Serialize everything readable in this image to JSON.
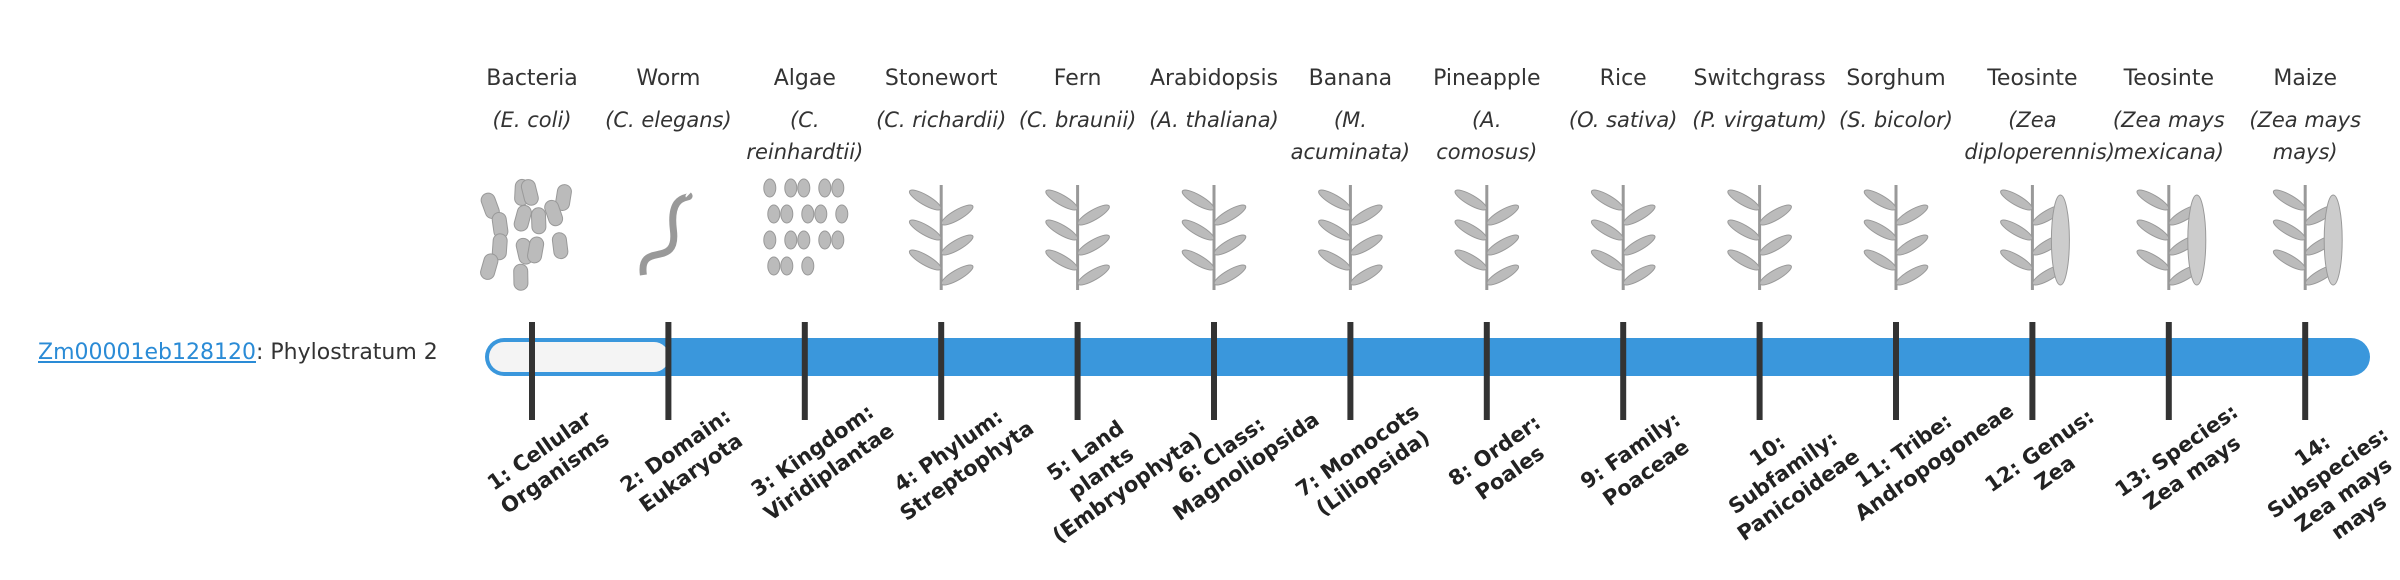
{
  "gene": {
    "id": "Zm00001eb128120",
    "suffix": ": Phylostratum 2"
  },
  "columns": [
    {
      "common": "Bacteria",
      "scientific": "(E. coli)",
      "stratum": "1: Cellular Organisms"
    },
    {
      "common": "Worm",
      "scientific": "(C. elegans)",
      "stratum": "2: Domain: Eukaryota"
    },
    {
      "common": "Algae",
      "scientific": "(C. reinhardtii)",
      "stratum": "3: Kingdom: Viridiplantae"
    },
    {
      "common": "Stonewort",
      "scientific": "(C. richardii)",
      "stratum": "4: Phylum: Streptophyta"
    },
    {
      "common": "Fern",
      "scientific": "(C. braunii)",
      "stratum": "5: Land plants (Embryophyta)"
    },
    {
      "common": "Arabidopsis",
      "scientific": "(A. thaliana)",
      "stratum": "6: Class: Magnoliopsida"
    },
    {
      "common": "Banana",
      "scientific": "(M. acuminata)",
      "stratum": "7: Monocots (Liliopsida)"
    },
    {
      "common": "Pineapple",
      "scientific": "(A. comosus)",
      "stratum": "8: Order: Poales"
    },
    {
      "common": "Rice",
      "scientific": "(O. sativa)",
      "stratum": "9: Family: Poaceae"
    },
    {
      "common": "Switchgrass",
      "scientific": "(P. virgatum)",
      "stratum": "10: Subfamily: Panicoideae"
    },
    {
      "common": "Sorghum",
      "scientific": "(S. bicolor)",
      "stratum": "11: Tribe: Andropogoneae"
    },
    {
      "common": "Teosinte",
      "scientific": "(Zea diploperennis)",
      "stratum": "12: Genus: Zea"
    },
    {
      "common": "Teosinte",
      "scientific": "(Zea mays mexicana)",
      "stratum": "13: Species: Zea mays"
    },
    {
      "common": "Maize",
      "scientific": "(Zea mays mays)",
      "stratum": "14: Subspecies: Zea mays mays"
    }
  ]
}
